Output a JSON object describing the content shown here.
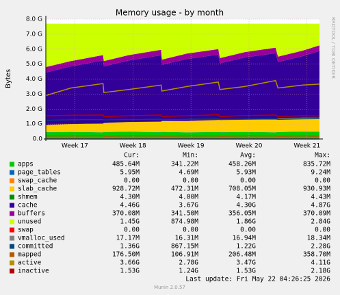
{
  "chart_data": {
    "type": "area",
    "title": "Memory usage - by month",
    "ylabel": "Bytes",
    "side_text": "RRDTOOL / TOBI OETIKER",
    "footer": "Last update: Fri May 22 04:26:25 2026",
    "version": "Munin 2.0.57",
    "grid": true,
    "xlim": [
      0,
      33
    ],
    "xticks": [
      {
        "value": 3.5,
        "label": "Week 17"
      },
      {
        "value": 10.5,
        "label": "Week 18"
      },
      {
        "value": 17.5,
        "label": "Week 19"
      },
      {
        "value": 24.5,
        "label": "Week 20"
      },
      {
        "value": 31.5,
        "label": "Week 21"
      }
    ],
    "ylim": [
      0,
      8
    ],
    "yticks": [
      {
        "value": 0,
        "label": "0.0"
      },
      {
        "value": 1,
        "label": "1.0 G"
      },
      {
        "value": 2,
        "label": "2.0 G"
      },
      {
        "value": 3,
        "label": "3.0 G"
      },
      {
        "value": 4,
        "label": "4.0 G"
      },
      {
        "value": 5,
        "label": "5.0 G"
      },
      {
        "value": 6,
        "label": "6.0 G"
      },
      {
        "value": 7,
        "label": "7.0 G"
      },
      {
        "value": 8,
        "label": "8.0 G"
      }
    ],
    "x": [
      0,
      3,
      6.9,
      7,
      10,
      13.9,
      14,
      17,
      20.8,
      21,
      24,
      27.7,
      28,
      31,
      33
    ],
    "stats_columns": [
      "Cur:",
      "Min:",
      "Avg:",
      "Max:"
    ],
    "series": [
      {
        "name": "apps",
        "color": "#00cc00",
        "style": "area",
        "values": [
          0.45,
          0.47,
          0.44,
          0.46,
          0.48,
          0.45,
          0.47,
          0.44,
          0.46,
          0.45,
          0.47,
          0.44,
          0.46,
          0.49,
          0.48
        ],
        "stats": [
          "485.64M",
          "341.22M",
          "458.26M",
          "835.72M"
        ]
      },
      {
        "name": "page_tables",
        "color": "#0066b3",
        "style": "area",
        "values": [
          0.006,
          0.006,
          0.006,
          0.006,
          0.006,
          0.006,
          0.006,
          0.006,
          0.006,
          0.006,
          0.006,
          0.006,
          0.006,
          0.006,
          0.006
        ],
        "stats": [
          "5.95M",
          "4.69M",
          "5.93M",
          "9.24M"
        ]
      },
      {
        "name": "swap_cache",
        "color": "#ff8000",
        "style": "area",
        "values": [
          0,
          0,
          0,
          0,
          0,
          0,
          0,
          0,
          0,
          0,
          0,
          0,
          0,
          0,
          0
        ],
        "stats": [
          "0.00",
          "0.00",
          "0.00",
          "0.00"
        ]
      },
      {
        "name": "slab_cache",
        "color": "#ffcc00",
        "style": "area",
        "values": [
          0.47,
          0.52,
          0.58,
          0.6,
          0.65,
          0.7,
          0.72,
          0.75,
          0.8,
          0.82,
          0.85,
          0.88,
          0.9,
          0.92,
          0.93
        ],
        "stats": [
          "928.72M",
          "472.31M",
          "708.05M",
          "930.93M"
        ]
      },
      {
        "name": "shmem",
        "color": "#008f00",
        "style": "area",
        "values": [
          0.004,
          0.004,
          0.004,
          0.004,
          0.004,
          0.004,
          0.004,
          0.004,
          0.004,
          0.004,
          0.004,
          0.004,
          0.004,
          0.004,
          0.004
        ],
        "stats": [
          "4.30M",
          "4.00M",
          "4.17M",
          "4.43M"
        ]
      },
      {
        "name": "cache",
        "color": "#330099",
        "style": "area",
        "values": [
          3.51,
          3.84,
          4.21,
          3.78,
          4.1,
          4.43,
          3.75,
          4.14,
          4.36,
          3.77,
          4.11,
          4.4,
          3.77,
          4.11,
          4.46
        ],
        "stats": [
          "4.46G",
          "3.67G",
          "4.30G",
          "4.87G"
        ]
      },
      {
        "name": "buffers",
        "color": "#990099",
        "style": "area",
        "values": [
          0.36,
          0.36,
          0.36,
          0.35,
          0.36,
          0.36,
          0.35,
          0.36,
          0.37,
          0.35,
          0.36,
          0.37,
          0.36,
          0.37,
          0.37
        ],
        "stats": [
          "370.08M",
          "341.50M",
          "356.05M",
          "370.09M"
        ]
      },
      {
        "name": "unused",
        "color": "#ccff00",
        "style": "area",
        "values": [
          2.9,
          2.5,
          2.1,
          2.5,
          2.1,
          1.75,
          2.4,
          2.0,
          1.7,
          2.3,
          1.9,
          1.6,
          2.2,
          1.8,
          1.45
        ],
        "stats": [
          "1.45G",
          "874.98M",
          "1.86G",
          "2.84G"
        ]
      },
      {
        "name": "swap",
        "color": "#ff0000",
        "style": "line",
        "values": [
          0,
          0,
          0,
          0,
          0,
          0,
          0,
          0,
          0,
          0,
          0,
          0,
          0,
          0,
          0
        ],
        "stats": [
          "0.00",
          "0.00",
          "0.00",
          "0.00"
        ]
      },
      {
        "name": "vmalloc_used",
        "color": "#808080",
        "style": "line",
        "values": [
          0.017,
          0.017,
          0.017,
          0.017,
          0.017,
          0.017,
          0.017,
          0.017,
          0.017,
          0.017,
          0.017,
          0.017,
          0.017,
          0.017,
          0.017
        ],
        "stats": [
          "17.17M",
          "16.31M",
          "16.94M",
          "18.34M"
        ]
      },
      {
        "name": "committed",
        "color": "#00487d",
        "style": "line",
        "values": [
          1.25,
          1.28,
          1.3,
          1.27,
          1.3,
          1.32,
          1.28,
          1.31,
          1.33,
          1.3,
          1.32,
          1.34,
          1.31,
          1.35,
          1.36
        ],
        "stats": [
          "1.36G",
          "867.15M",
          "1.22G",
          "2.28G"
        ]
      },
      {
        "name": "mapped",
        "color": "#b35a00",
        "style": "line",
        "values": [
          0.2,
          0.19,
          0.21,
          0.18,
          0.2,
          0.19,
          0.18,
          0.2,
          0.19,
          0.18,
          0.2,
          0.19,
          0.18,
          0.19,
          0.18
        ],
        "stats": [
          "176.50M",
          "106.91M",
          "206.48M",
          "358.70M"
        ]
      },
      {
        "name": "active",
        "color": "#b38f00",
        "style": "line",
        "values": [
          2.9,
          3.4,
          3.7,
          3.1,
          3.3,
          3.6,
          3.2,
          3.5,
          3.8,
          3.3,
          3.5,
          3.9,
          3.4,
          3.6,
          3.66
        ],
        "stats": [
          "3.66G",
          "2.78G",
          "3.47G",
          "4.11G"
        ]
      },
      {
        "name": "inactive",
        "color": "#b30000",
        "style": "line",
        "values": [
          1.55,
          1.58,
          1.6,
          1.5,
          1.55,
          1.6,
          1.5,
          1.55,
          1.62,
          1.5,
          1.56,
          1.6,
          1.5,
          1.55,
          1.53
        ],
        "stats": [
          "1.53G",
          "1.24G",
          "1.53G",
          "2.18G"
        ]
      }
    ]
  }
}
